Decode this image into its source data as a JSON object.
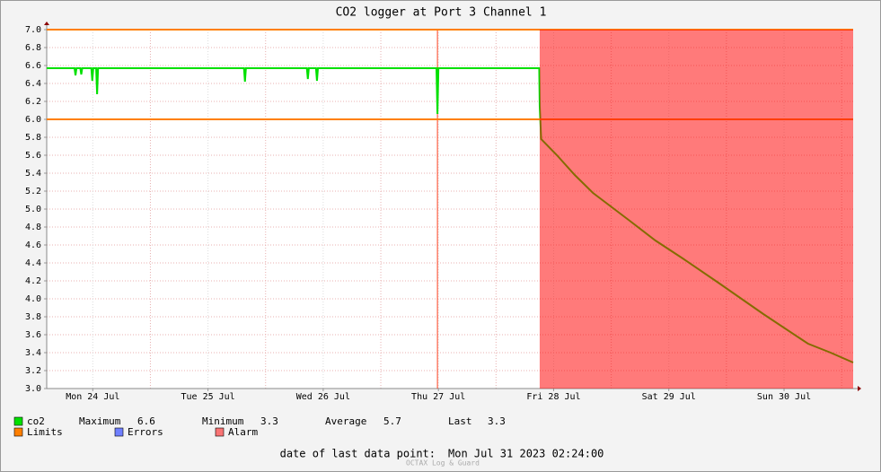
{
  "chart_data": {
    "type": "line",
    "title": "CO2 logger at Port 3 Channel 1",
    "x": [
      2.4,
      8.2,
      8.4,
      8.6,
      9.4,
      9.6,
      9.8,
      11.7,
      11.9,
      12.1,
      12.7,
      12.9,
      13.1,
      43.5,
      43.7,
      43.9,
      56.6,
      56.8,
      57.0,
      58.5,
      58.7,
      58.9,
      83.6,
      83.8,
      84.0,
      105.0,
      105.1,
      105.4,
      108.7,
      112.4,
      116.2,
      119.9,
      123.6,
      129.2,
      134.9,
      142.3,
      151.7,
      161.0,
      165.7,
      170.4
    ],
    "series": [
      {
        "name": "co2",
        "color": "#00e000",
        "values": [
          6.57,
          6.57,
          6.49,
          6.57,
          6.57,
          6.5,
          6.57,
          6.57,
          6.43,
          6.57,
          6.57,
          6.28,
          6.57,
          6.57,
          6.42,
          6.57,
          6.57,
          6.45,
          6.57,
          6.57,
          6.43,
          6.57,
          6.57,
          6.06,
          6.57,
          6.57,
          6.15,
          5.78,
          5.6,
          5.38,
          5.18,
          5.03,
          4.88,
          4.65,
          4.45,
          4.18,
          3.83,
          3.5,
          3.4,
          3.29
        ]
      }
    ],
    "xlim": [
      2.4,
      170.4
    ],
    "ylim": [
      3,
      7
    ],
    "xticks": [
      {
        "value": 12,
        "label": "Mon 24 Jul"
      },
      {
        "value": 36,
        "label": "Tue 25 Jul"
      },
      {
        "value": 60,
        "label": "Wed 26 Jul"
      },
      {
        "value": 84,
        "label": "Thu 27 Jul"
      },
      {
        "value": 108,
        "label": "Fri 28 Jul"
      },
      {
        "value": 132,
        "label": "Sat 29 Jul"
      },
      {
        "value": 156,
        "label": "Sun 30 Jul"
      }
    ],
    "xgrid": [
      24,
      48,
      72,
      96,
      120,
      144,
      168
    ],
    "yticks": [
      {
        "value": 3,
        "label": "3.0"
      },
      3.2,
      3.4,
      3.6,
      3.8,
      {
        "value": 4,
        "label": "4.0"
      },
      4.2,
      4.4,
      4.6,
      4.8,
      {
        "value": 5,
        "label": "5.0"
      },
      5.2,
      5.4,
      5.6,
      5.8,
      {
        "value": 6,
        "label": "6.0"
      },
      6.2,
      6.4,
      6.6,
      6.8,
      {
        "value": 7,
        "label": "7.0"
      }
    ],
    "grid": true,
    "limits": {
      "name": "Limits",
      "color": "#ff7f00",
      "values": [
        6,
        7
      ]
    },
    "errors": {
      "name": "Errors",
      "color": "#6f7fff"
    },
    "alarm": {
      "name": "Alarm",
      "color": "#ff0000",
      "range": [
        105.1,
        170.4
      ]
    },
    "event_x": 83.8,
    "stats": [
      {
        "label": "Maximum",
        "value": 6.6
      },
      {
        "label": "Minimum",
        "value": 3.3
      },
      {
        "label": "Average",
        "value": 5.7
      },
      {
        "label": "Last",
        "value": 3.3
      }
    ],
    "footer": {
      "label": "date of last data point:",
      "value": "Mon Jul 31 2023 02:24:00"
    },
    "credit": "OCTAX Log & Guard"
  }
}
